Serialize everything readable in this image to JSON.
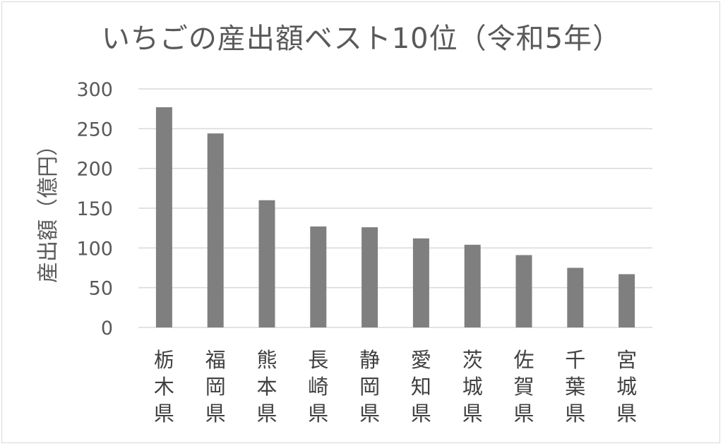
{
  "chart_data": {
    "type": "bar",
    "title": "いちごの産出額ベスト10位（令和5年）",
    "xlabel": "",
    "ylabel": "産出額（億円）",
    "ylim": [
      0,
      300
    ],
    "yticks": [
      0,
      50,
      100,
      150,
      200,
      250,
      300
    ],
    "grid": true,
    "legend": "none",
    "bar_color": "#7f7f7f",
    "gridline_color": "#d9d9d9",
    "categories": [
      "栃木県",
      "福岡県",
      "熊本県",
      "長崎県",
      "静岡県",
      "愛知県",
      "茨城県",
      "佐賀県",
      "千葉県",
      "宮城県"
    ],
    "values": [
      277,
      244,
      160,
      127,
      126,
      112,
      104,
      91,
      75,
      67
    ]
  }
}
